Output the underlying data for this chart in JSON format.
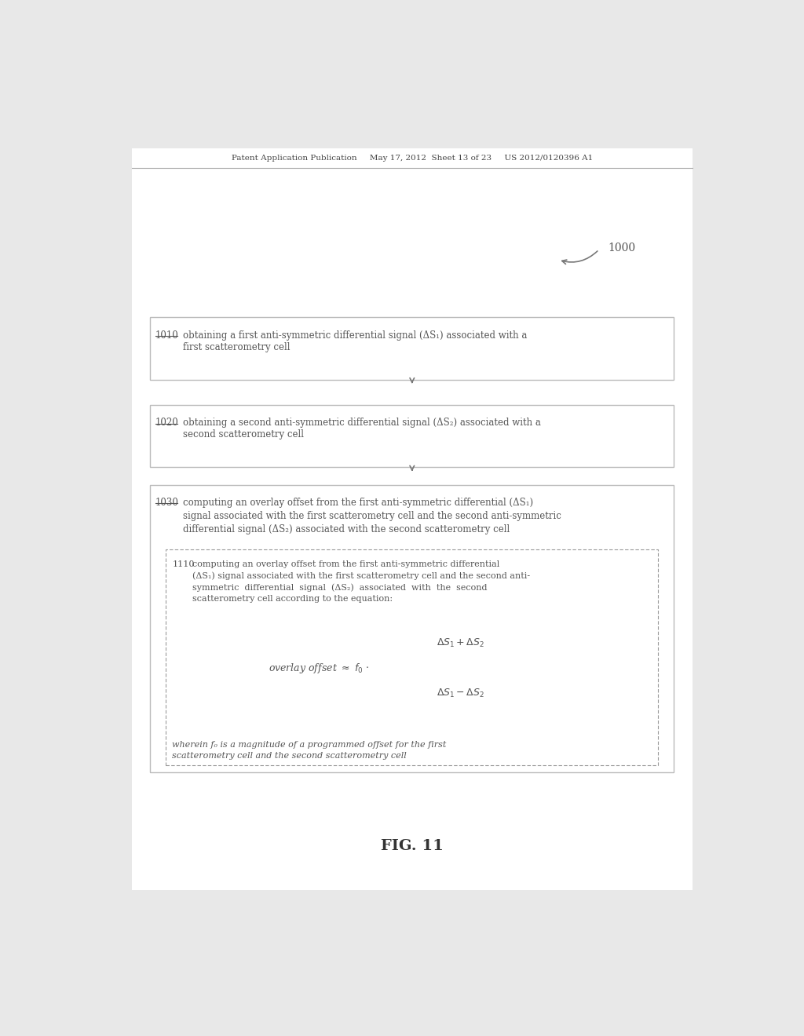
{
  "bg_color": "#e8e8e8",
  "page_bg": "#ffffff",
  "header_text": "Patent Application Publication     May 17, 2012  Sheet 13 of 23     US 2012/0120396 A1",
  "figure_label": "FIG. 11",
  "ref_number": "1000",
  "box1_label": "1010",
  "box1_text": "obtaining a first anti-symmetric differential signal (ΔS₁) associated with a\nfirst scatterometry cell",
  "box2_label": "1020",
  "box2_text": "obtaining a second anti-symmetric differential signal (ΔS₂) associated with a\nsecond scatterometry cell",
  "box3_label": "1030",
  "box3_text": "computing an overlay offset from the first anti-symmetric differential (ΔS₁)\nsignal associated with the first scatterometry cell and the second anti-symmetric\ndifferential signal (ΔS₂) associated with the second scatterometry cell",
  "inner_box_label": "1110",
  "inner_box_text1": "computing an overlay offset from the first anti-symmetric differential\n(ΔS₁) signal associated with the first scatterometry cell and the second anti-\nsymmetric  differential  signal  (ΔS₂)  associated  with  the  second\nscatterometry cell according to the equation:",
  "inner_box_text2": "wherein f₀ is a magnitude of a programmed offset for the first\nscatterometry cell and the second scatterometry cell",
  "outer_box_color": "#bbbbbb",
  "inner_box_dash_color": "#999999",
  "text_color": "#555555",
  "arrow_color": "#777777"
}
